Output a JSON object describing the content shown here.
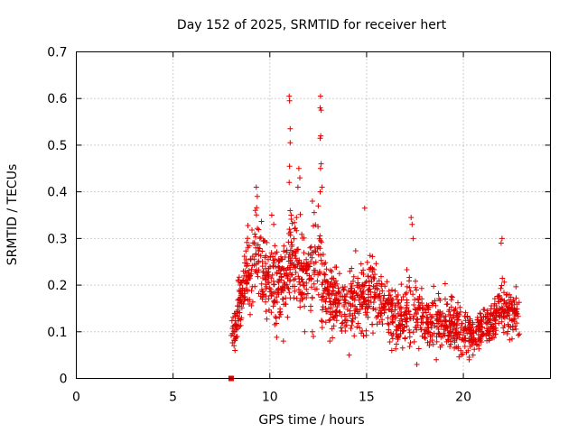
{
  "chart_data": {
    "type": "scatter",
    "title": "Day 152 of 2025, SRMTID for receiver hert",
    "xlabel": "GPS time / hours",
    "ylabel": "SRMTID / TECUs",
    "xlim": [
      0,
      24.5
    ],
    "ylim": [
      0,
      0.7
    ],
    "xticks": [
      0,
      5,
      10,
      15,
      20
    ],
    "yticks": [
      0,
      0.1,
      0.2,
      0.3,
      0.4,
      0.5,
      0.6,
      0.7
    ],
    "xtick_labels": [
      "0",
      "5",
      "10",
      "15",
      "20"
    ],
    "ytick_labels": [
      "0",
      "0.1",
      "0.2",
      "0.3",
      "0.4",
      "0.5",
      "0.6",
      "0.7"
    ],
    "grid": true,
    "marker": "plus",
    "color": "#e00000",
    "zero_marker": {
      "x": 8.0,
      "y": 0.0,
      "marker": "square"
    },
    "envelope": {
      "x": [
        8.0,
        8.2,
        8.5,
        8.8,
        9.0,
        9.3,
        9.6,
        10.0,
        10.3,
        10.6,
        11.0,
        11.3,
        11.6,
        12.0,
        12.3,
        12.7,
        13.0,
        13.5,
        14.0,
        14.5,
        15.0,
        15.5,
        16.0,
        16.5,
        17.0,
        17.5,
        18.0,
        18.5,
        19.0,
        19.5,
        20.0,
        20.5,
        21.0,
        21.5,
        22.0,
        22.5,
        22.9
      ],
      "center": [
        0.12,
        0.11,
        0.17,
        0.22,
        0.22,
        0.3,
        0.22,
        0.21,
        0.19,
        0.2,
        0.25,
        0.27,
        0.24,
        0.22,
        0.26,
        0.22,
        0.17,
        0.17,
        0.15,
        0.17,
        0.18,
        0.18,
        0.16,
        0.13,
        0.13,
        0.15,
        0.12,
        0.12,
        0.12,
        0.11,
        0.1,
        0.09,
        0.11,
        0.12,
        0.16,
        0.13,
        0.15
      ],
      "spread": [
        0.05,
        0.04,
        0.06,
        0.07,
        0.06,
        0.08,
        0.07,
        0.08,
        0.07,
        0.06,
        0.09,
        0.09,
        0.08,
        0.08,
        0.09,
        0.08,
        0.06,
        0.06,
        0.06,
        0.07,
        0.07,
        0.06,
        0.05,
        0.05,
        0.06,
        0.07,
        0.05,
        0.05,
        0.05,
        0.05,
        0.05,
        0.04,
        0.04,
        0.05,
        0.06,
        0.05,
        0.04
      ]
    },
    "outliers": [
      {
        "x": 9.3,
        "y": 0.41
      },
      {
        "x": 9.35,
        "y": 0.39
      },
      {
        "x": 9.25,
        "y": 0.36
      },
      {
        "x": 10.1,
        "y": 0.35
      },
      {
        "x": 10.2,
        "y": 0.33
      },
      {
        "x": 11.0,
        "y": 0.605
      },
      {
        "x": 11.02,
        "y": 0.595
      },
      {
        "x": 11.05,
        "y": 0.535
      },
      {
        "x": 11.05,
        "y": 0.505
      },
      {
        "x": 11.02,
        "y": 0.455
      },
      {
        "x": 11.0,
        "y": 0.42
      },
      {
        "x": 11.1,
        "y": 0.35
      },
      {
        "x": 11.5,
        "y": 0.45
      },
      {
        "x": 11.55,
        "y": 0.43
      },
      {
        "x": 11.45,
        "y": 0.41
      },
      {
        "x": 12.5,
        "y": 0.37
      },
      {
        "x": 12.6,
        "y": 0.4
      },
      {
        "x": 12.62,
        "y": 0.605
      },
      {
        "x": 12.6,
        "y": 0.58
      },
      {
        "x": 12.65,
        "y": 0.575
      },
      {
        "x": 12.63,
        "y": 0.52
      },
      {
        "x": 12.6,
        "y": 0.515
      },
      {
        "x": 12.65,
        "y": 0.46
      },
      {
        "x": 12.62,
        "y": 0.45
      },
      {
        "x": 12.7,
        "y": 0.41
      },
      {
        "x": 12.2,
        "y": 0.38
      },
      {
        "x": 14.9,
        "y": 0.365
      },
      {
        "x": 17.3,
        "y": 0.345
      },
      {
        "x": 17.35,
        "y": 0.33
      },
      {
        "x": 17.4,
        "y": 0.3
      },
      {
        "x": 22.0,
        "y": 0.3
      },
      {
        "x": 21.95,
        "y": 0.29
      },
      {
        "x": 12.2,
        "y": 0.1
      },
      {
        "x": 12.25,
        "y": 0.09
      },
      {
        "x": 13.1,
        "y": 0.08
      },
      {
        "x": 14.1,
        "y": 0.05
      },
      {
        "x": 16.3,
        "y": 0.06
      },
      {
        "x": 17.6,
        "y": 0.03
      },
      {
        "x": 18.6,
        "y": 0.04
      },
      {
        "x": 20.3,
        "y": 0.04
      },
      {
        "x": 20.5,
        "y": 0.05
      },
      {
        "x": 8.15,
        "y": 0.07
      },
      {
        "x": 8.2,
        "y": 0.06
      },
      {
        "x": 10.7,
        "y": 0.08
      },
      {
        "x": 11.8,
        "y": 0.1
      }
    ]
  }
}
